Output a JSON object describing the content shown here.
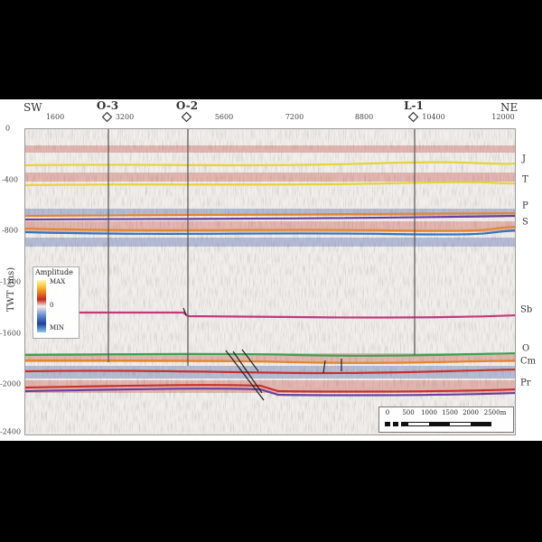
{
  "directions": {
    "left": "SW",
    "right": "NE"
  },
  "wells": [
    "O-3",
    "O-2",
    "L-1"
  ],
  "x_ticks": [
    "1600",
    "3200",
    "5600",
    "7200",
    "8800",
    "10400",
    "12000"
  ],
  "y_ticks": [
    "0",
    "-400",
    "-800",
    "-1200",
    "-1600",
    "-2000",
    "-2400"
  ],
  "y_axis_title": "TWT (ms)",
  "horizons": [
    "J",
    "T",
    "P",
    "S",
    "Sb",
    "O",
    "Cm",
    "Pr"
  ],
  "legend": {
    "title": "Amplitude",
    "max": "MAX",
    "zero": "0",
    "min": "MIN"
  },
  "scale_bar": {
    "ticks": [
      "0",
      "500",
      "1000",
      "1500",
      "2000",
      "2500m"
    ]
  },
  "colors": {
    "yellow": "#e6d23a",
    "orange": "#e4862a",
    "purple": "#6b3fa0",
    "blue": "#2f74c9",
    "magenta": "#c2397e",
    "green": "#3aa34f",
    "red": "#c8312b"
  }
}
